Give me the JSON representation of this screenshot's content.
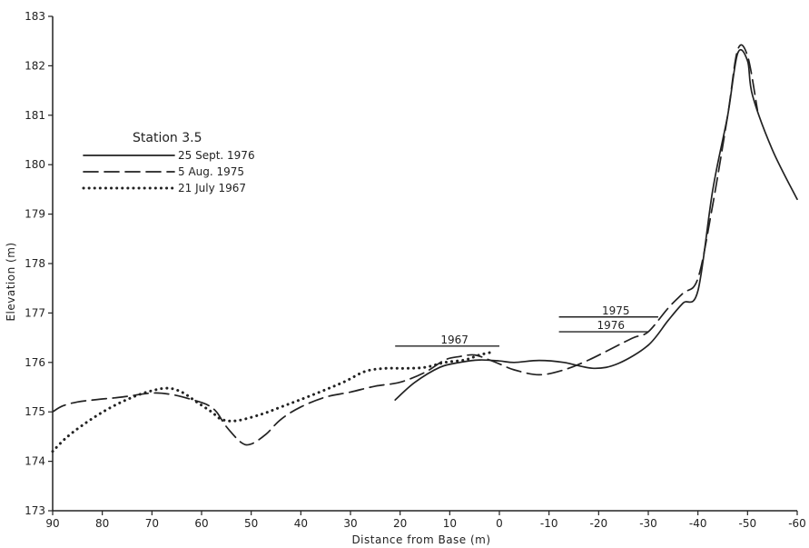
{
  "chart_data": {
    "type": "line",
    "title": "Station 3.5",
    "xlabel": "Distance from Base (m)",
    "ylabel": "Elevation (m)",
    "xlim": [
      90,
      -60
    ],
    "ylim": [
      173,
      183
    ],
    "x_ticks": [
      "90",
      "80",
      "70",
      "60",
      "50",
      "40",
      "30",
      "20",
      "10",
      "0",
      "-10",
      "-20",
      "-30",
      "-40",
      "-50",
      "-60"
    ],
    "y_ticks": [
      "173",
      "174",
      "175",
      "176",
      "177",
      "178",
      "179",
      "180",
      "181",
      "182",
      "183"
    ],
    "grid": false,
    "legend_position": "top-left",
    "colors": {
      "line": "#222222",
      "axis": "#222222"
    },
    "series": [
      {
        "name": "25 Sept. 1976",
        "style": "solid",
        "points": [
          [
            21,
            175.24
          ],
          [
            17,
            175.6
          ],
          [
            12,
            175.9
          ],
          [
            8,
            176.0
          ],
          [
            4,
            176.05
          ],
          [
            0,
            176.03
          ],
          [
            -3,
            176.0
          ],
          [
            -8,
            176.04
          ],
          [
            -13,
            176.0
          ],
          [
            -19,
            175.88
          ],
          [
            -24,
            175.98
          ],
          [
            -30,
            176.35
          ],
          [
            -34,
            176.85
          ],
          [
            -37,
            177.2
          ],
          [
            -40,
            177.45
          ],
          [
            -43,
            179.5
          ],
          [
            -46,
            181.0
          ],
          [
            -48,
            182.25
          ],
          [
            -50,
            182.1
          ],
          [
            -51,
            181.4
          ],
          [
            -55,
            180.3
          ],
          [
            -60,
            179.3
          ]
        ]
      },
      {
        "name": "5 Aug. 1975",
        "style": "dashed",
        "points": [
          [
            90,
            175.0
          ],
          [
            88,
            175.12
          ],
          [
            85,
            175.2
          ],
          [
            81,
            175.25
          ],
          [
            76,
            175.3
          ],
          [
            70,
            175.38
          ],
          [
            66,
            175.35
          ],
          [
            62,
            175.25
          ],
          [
            59,
            175.15
          ],
          [
            57,
            175.0
          ],
          [
            55,
            174.7
          ],
          [
            52,
            174.38
          ],
          [
            50,
            174.35
          ],
          [
            47,
            174.55
          ],
          [
            44,
            174.85
          ],
          [
            40,
            175.1
          ],
          [
            35,
            175.3
          ],
          [
            30,
            175.4
          ],
          [
            25,
            175.52
          ],
          [
            20,
            175.6
          ],
          [
            15,
            175.8
          ],
          [
            11,
            176.05
          ],
          [
            8,
            176.12
          ],
          [
            5,
            176.15
          ],
          [
            2,
            176.05
          ],
          [
            0,
            175.97
          ],
          [
            -3,
            175.85
          ],
          [
            -8,
            175.75
          ],
          [
            -13,
            175.85
          ],
          [
            -18,
            176.05
          ],
          [
            -23,
            176.3
          ],
          [
            -27,
            176.5
          ],
          [
            -30,
            176.62
          ],
          [
            -34,
            177.1
          ],
          [
            -37,
            177.4
          ],
          [
            -40,
            177.7
          ],
          [
            -43,
            179.2
          ],
          [
            -46,
            181.0
          ],
          [
            -48,
            182.32
          ],
          [
            -50,
            182.2
          ],
          [
            -52,
            181.1
          ]
        ]
      },
      {
        "name": "21 July 1967",
        "style": "dotted",
        "points": [
          [
            90,
            174.2
          ],
          [
            87,
            174.5
          ],
          [
            83,
            174.8
          ],
          [
            79,
            175.05
          ],
          [
            75,
            175.25
          ],
          [
            71,
            175.4
          ],
          [
            67,
            175.48
          ],
          [
            64,
            175.4
          ],
          [
            61,
            175.2
          ],
          [
            58,
            175.0
          ],
          [
            56,
            174.85
          ],
          [
            53,
            174.82
          ],
          [
            48,
            174.95
          ],
          [
            44,
            175.1
          ],
          [
            40,
            175.25
          ],
          [
            35,
            175.45
          ],
          [
            31,
            175.62
          ],
          [
            27,
            175.82
          ],
          [
            23,
            175.88
          ],
          [
            19,
            175.88
          ],
          [
            15,
            175.9
          ],
          [
            11,
            176.0
          ],
          [
            7,
            176.05
          ],
          [
            4,
            176.15
          ],
          [
            1,
            176.22
          ]
        ]
      }
    ],
    "annotations": [
      {
        "label": "1967",
        "x_range": [
          21,
          0
        ],
        "y": 176.33
      },
      {
        "label": "1975",
        "x_range": [
          -12,
          -32
        ],
        "y": 176.92
      },
      {
        "label": "1976",
        "x_range": [
          -12,
          -30
        ],
        "y": 176.62
      }
    ]
  }
}
